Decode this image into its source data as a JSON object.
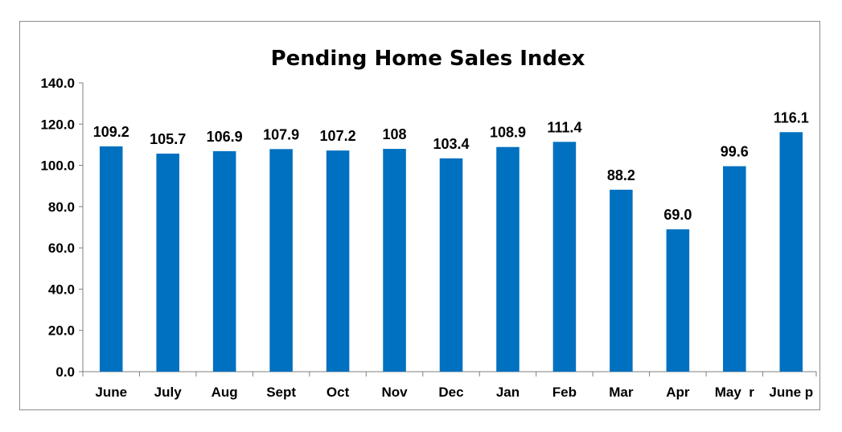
{
  "chart_data": {
    "type": "bar",
    "title": "Pending Home Sales Index",
    "xlabel": "",
    "ylabel": "",
    "ylim": [
      0,
      140
    ],
    "yticks": [
      "0.0",
      "20.0",
      "40.0",
      "60.0",
      "80.0",
      "100.0",
      "120.0",
      "140.0"
    ],
    "categories": [
      "June",
      "July",
      "Aug",
      "Sept",
      "Oct",
      "Nov",
      "Dec",
      "Jan",
      "Feb",
      "Mar",
      "Apr",
      "May  r",
      "June p"
    ],
    "values": [
      109.2,
      105.7,
      106.9,
      107.9,
      107.2,
      108,
      103.4,
      108.9,
      111.4,
      88.2,
      69.0,
      99.6,
      116.1
    ],
    "data_labels": [
      "109.2",
      "105.7",
      "106.9",
      "107.9",
      "107.2",
      "108",
      "103.4",
      "108.9",
      "111.4",
      "88.2",
      "69.0",
      "99.6",
      "116.1"
    ],
    "bar_color": "#0070C0",
    "grid": false,
    "legend": "none"
  }
}
